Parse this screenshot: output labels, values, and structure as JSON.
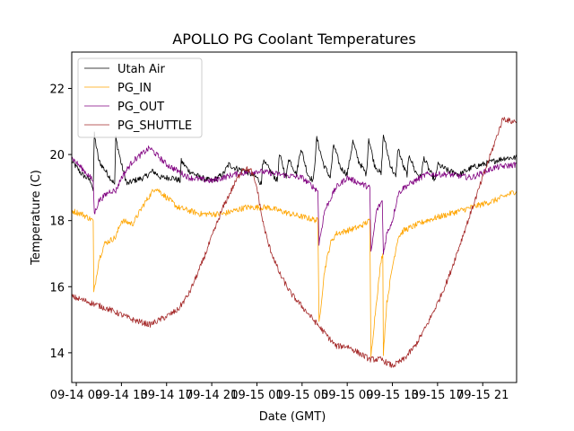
{
  "chart_data": {
    "type": "line",
    "title": "APOLLO PG Coolant Temperatures",
    "xlabel": "Date (GMT)",
    "ylabel": "Temperature (C)",
    "x_units": "hours since 09-14 00:00 GMT",
    "xlim": [
      8.6,
      48.0
    ],
    "ylim": [
      13.1,
      23.1
    ],
    "grid": false,
    "legend_position": "top-left",
    "x_ticks": [
      {
        "value": 9,
        "label": "09-14 09"
      },
      {
        "value": 13,
        "label": "09-14 13"
      },
      {
        "value": 17,
        "label": "09-14 17"
      },
      {
        "value": 21,
        "label": "09-14 21"
      },
      {
        "value": 25,
        "label": "09-15 01"
      },
      {
        "value": 29,
        "label": "09-15 05"
      },
      {
        "value": 33,
        "label": "09-15 09"
      },
      {
        "value": 37,
        "label": "09-15 13"
      },
      {
        "value": 41,
        "label": "09-15 17"
      },
      {
        "value": 45,
        "label": "09-15 21"
      }
    ],
    "y_ticks": [
      {
        "value": 14,
        "label": "14"
      },
      {
        "value": 16,
        "label": "16"
      },
      {
        "value": 18,
        "label": "18"
      },
      {
        "value": 20,
        "label": "20"
      },
      {
        "value": 22,
        "label": "22"
      }
    ],
    "series": [
      {
        "name": "Utah Air",
        "color": "#000000",
        "points": [
          [
            8.6,
            19.8
          ],
          [
            9.5,
            19.4
          ],
          [
            10.3,
            19.2
          ],
          [
            10.5,
            18.9
          ],
          [
            10.6,
            20.6
          ],
          [
            11,
            19.8
          ],
          [
            12,
            19.3
          ],
          [
            12.4,
            19.1
          ],
          [
            12.5,
            20.5
          ],
          [
            13,
            19.7
          ],
          [
            13.5,
            19.1
          ],
          [
            14,
            19.2
          ],
          [
            15,
            19.3
          ],
          [
            15.8,
            19.5
          ],
          [
            16.5,
            19.3
          ],
          [
            17.5,
            19.3
          ],
          [
            18.2,
            19.2
          ],
          [
            18.3,
            19.8
          ],
          [
            19,
            19.5
          ],
          [
            20,
            19.3
          ],
          [
            21,
            19.2
          ],
          [
            22,
            19.4
          ],
          [
            22.5,
            19.7
          ],
          [
            23,
            19.6
          ],
          [
            24,
            19.5
          ],
          [
            25,
            19.3
          ],
          [
            25.4,
            19.1
          ],
          [
            25.5,
            19.8
          ],
          [
            26,
            19.6
          ],
          [
            26.8,
            19.2
          ],
          [
            27,
            20.0
          ],
          [
            27.6,
            19.3
          ],
          [
            27.8,
            19.9
          ],
          [
            28.5,
            19.4
          ],
          [
            28.9,
            20.2
          ],
          [
            29.5,
            19.4
          ],
          [
            30,
            19.2
          ],
          [
            30.3,
            20.5
          ],
          [
            30.9,
            19.7
          ],
          [
            31.5,
            19.3
          ],
          [
            31.8,
            20.3
          ],
          [
            32.4,
            19.6
          ],
          [
            33,
            19.4
          ],
          [
            33.5,
            20.4
          ],
          [
            34,
            19.8
          ],
          [
            34.7,
            19.4
          ],
          [
            34.9,
            20.5
          ],
          [
            35.4,
            19.7
          ],
          [
            36,
            19.4
          ],
          [
            36.2,
            20.6
          ],
          [
            36.8,
            19.7
          ],
          [
            37.3,
            19.3
          ],
          [
            37.5,
            20.2
          ],
          [
            38,
            19.6
          ],
          [
            38.3,
            19.4
          ],
          [
            38.5,
            20.0
          ],
          [
            39,
            19.5
          ],
          [
            39.5,
            19.3
          ],
          [
            39.8,
            19.9
          ],
          [
            40.3,
            19.5
          ],
          [
            40.8,
            19.2
          ],
          [
            41,
            19.7
          ],
          [
            42,
            19.5
          ],
          [
            43,
            19.4
          ],
          [
            44,
            19.6
          ],
          [
            45,
            19.7
          ],
          [
            46,
            19.8
          ],
          [
            47,
            19.9
          ],
          [
            48,
            19.9
          ]
        ]
      },
      {
        "name": "PG_IN",
        "color": "#ffa500",
        "points": [
          [
            8.6,
            18.3
          ],
          [
            9.5,
            18.2
          ],
          [
            10.5,
            18.0
          ],
          [
            10.55,
            15.8
          ],
          [
            11,
            16.8
          ],
          [
            11.5,
            17.3
          ],
          [
            12.5,
            17.5
          ],
          [
            13,
            18.0
          ],
          [
            14,
            17.9
          ],
          [
            15,
            18.5
          ],
          [
            16,
            19.0
          ],
          [
            17,
            18.7
          ],
          [
            18,
            18.4
          ],
          [
            20,
            18.2
          ],
          [
            22,
            18.2
          ],
          [
            24,
            18.4
          ],
          [
            26,
            18.4
          ],
          [
            28,
            18.2
          ],
          [
            30.4,
            18.0
          ],
          [
            30.5,
            14.9
          ],
          [
            31,
            16.5
          ],
          [
            31.5,
            17.3
          ],
          [
            32,
            17.6
          ],
          [
            34,
            17.8
          ],
          [
            35,
            18.0
          ],
          [
            35.1,
            13.9
          ],
          [
            35.6,
            15.6
          ],
          [
            36,
            16.8
          ],
          [
            36.15,
            17.0
          ],
          [
            36.2,
            14.0
          ],
          [
            36.5,
            15.5
          ],
          [
            37,
            16.6
          ],
          [
            37.5,
            17.5
          ],
          [
            38,
            17.7
          ],
          [
            40,
            18.0
          ],
          [
            42,
            18.2
          ],
          [
            44,
            18.4
          ],
          [
            46,
            18.6
          ],
          [
            48,
            18.9
          ]
        ]
      },
      {
        "name": "PG_OUT",
        "color": "#800080",
        "points": [
          [
            8.6,
            19.9
          ],
          [
            10,
            19.4
          ],
          [
            10.5,
            19.2
          ],
          [
            10.6,
            18.2
          ],
          [
            11,
            18.6
          ],
          [
            12,
            18.9
          ],
          [
            12.5,
            18.9
          ],
          [
            13,
            19.3
          ],
          [
            14,
            19.8
          ],
          [
            15.5,
            20.2
          ],
          [
            17,
            19.7
          ],
          [
            19,
            19.3
          ],
          [
            21,
            19.2
          ],
          [
            23,
            19.4
          ],
          [
            25,
            19.5
          ],
          [
            27,
            19.4
          ],
          [
            29,
            19.3
          ],
          [
            30.4,
            18.9
          ],
          [
            30.5,
            17.3
          ],
          [
            31,
            18.3
          ],
          [
            32,
            19.0
          ],
          [
            33,
            19.3
          ],
          [
            35,
            19.0
          ],
          [
            35.1,
            17.0
          ],
          [
            35.6,
            18.3
          ],
          [
            36.1,
            18.6
          ],
          [
            36.2,
            17.0
          ],
          [
            36.5,
            17.6
          ],
          [
            37,
            18.0
          ],
          [
            37.5,
            18.8
          ],
          [
            38,
            19.0
          ],
          [
            40,
            19.4
          ],
          [
            42,
            19.4
          ],
          [
            44,
            19.3
          ],
          [
            46,
            19.6
          ],
          [
            48,
            19.7
          ]
        ]
      },
      {
        "name": "PG_SHUTTLE",
        "color": "#a52a2a",
        "points": [
          [
            8.6,
            15.7
          ],
          [
            10,
            15.55
          ],
          [
            12,
            15.3
          ],
          [
            14,
            15.0
          ],
          [
            15.5,
            14.85
          ],
          [
            17,
            15.1
          ],
          [
            18,
            15.3
          ],
          [
            19,
            15.8
          ],
          [
            20,
            16.6
          ],
          [
            21,
            17.5
          ],
          [
            22,
            18.4
          ],
          [
            23,
            19.1
          ],
          [
            23.8,
            19.6
          ],
          [
            24.5,
            19.5
          ],
          [
            25,
            19.0
          ],
          [
            25.5,
            18.0
          ],
          [
            26,
            17.3
          ],
          [
            27,
            16.4
          ],
          [
            28,
            15.8
          ],
          [
            29,
            15.4
          ],
          [
            30,
            15.0
          ],
          [
            31,
            14.6
          ],
          [
            32,
            14.2
          ],
          [
            33,
            14.2
          ],
          [
            34,
            14.0
          ],
          [
            35,
            13.8
          ],
          [
            36,
            13.8
          ],
          [
            37,
            13.6
          ],
          [
            38,
            13.8
          ],
          [
            39,
            14.2
          ],
          [
            40,
            14.8
          ],
          [
            41,
            15.5
          ],
          [
            42,
            16.3
          ],
          [
            43,
            17.3
          ],
          [
            44,
            18.3
          ],
          [
            45,
            19.3
          ],
          [
            46,
            20.3
          ],
          [
            46.8,
            21.1
          ],
          [
            47.5,
            21.0
          ],
          [
            48,
            21.0
          ]
        ]
      }
    ]
  }
}
